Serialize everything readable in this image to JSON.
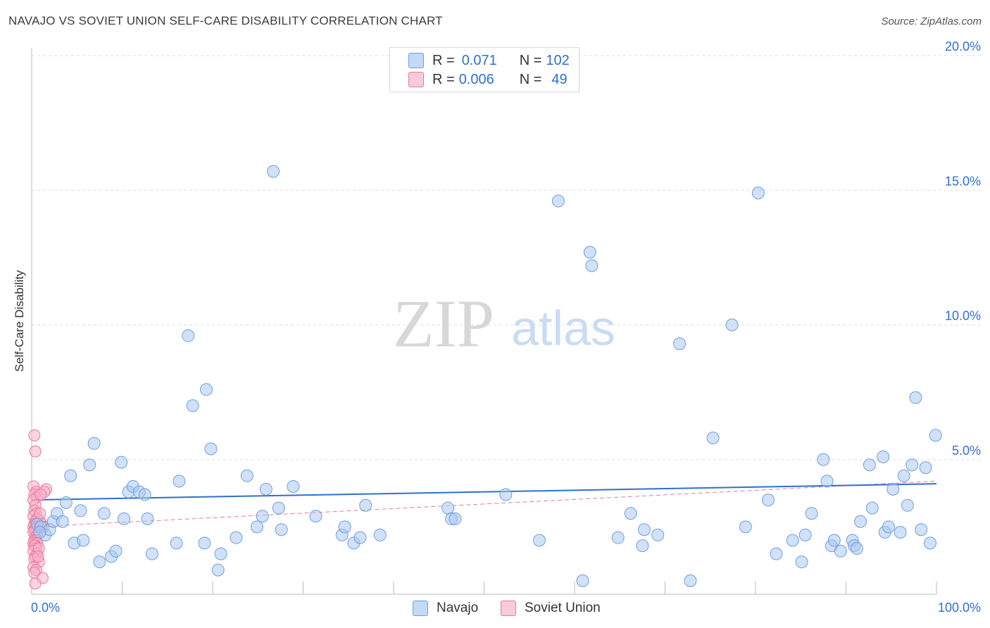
{
  "title": "NAVAJO VS SOVIET UNION SELF-CARE DISABILITY CORRELATION CHART",
  "source": "Source: ZipAtlas.com",
  "watermark": {
    "zip": "ZIP",
    "atlas": "atlas"
  },
  "legend_top": [
    {
      "r_label": "R = ",
      "r_value": "0.071",
      "n_label": "N = ",
      "n_value": "102",
      "color": "#a9c8f2"
    },
    {
      "r_label": "R = ",
      "r_value": "0.006",
      "n_label": "N = ",
      "n_value": "49",
      "color": "#f7b3c8"
    }
  ],
  "colors": {
    "navajo_fill": "#a9c8f2",
    "navajo_stroke": "#6f9fdc",
    "navajo_line": "#2f6fd0",
    "soviet_fill": "#f7b3c8",
    "soviet_stroke": "#e9779d",
    "soviet_line": "#e9779d",
    "tick_text": "#2f6fd0",
    "grid": "#dddddd"
  },
  "chart_data": {
    "type": "scatter",
    "title": "NAVAJO VS SOVIET UNION SELF-CARE DISABILITY CORRELATION CHART",
    "xlabel": "",
    "ylabel": "Self-Care Disability",
    "xlim": [
      0,
      100
    ],
    "ylim": [
      0,
      20
    ],
    "x_tick_labels": [
      "0.0%",
      "100.0%"
    ],
    "y_ticks": [
      5,
      10,
      15,
      20
    ],
    "y_tick_labels": [
      "5.0%",
      "10.0%",
      "15.0%",
      "20.0%"
    ],
    "grid": true,
    "legend_position": "top-center and bottom",
    "series": [
      {
        "name": "Navajo",
        "r": 0.071,
        "n": 102,
        "trend": {
          "x": [
            0,
            100
          ],
          "y": [
            3.5,
            4.1
          ]
        },
        "points": [
          [
            0.6,
            2.6
          ],
          [
            1.0,
            2.5
          ],
          [
            1.5,
            2.2
          ],
          [
            2.0,
            2.4
          ],
          [
            2.4,
            2.7
          ],
          [
            2.8,
            3.0
          ],
          [
            3.4,
            2.7
          ],
          [
            3.8,
            3.4
          ],
          [
            4.3,
            4.4
          ],
          [
            4.7,
            1.9
          ],
          [
            5.4,
            3.1
          ],
          [
            5.7,
            2.0
          ],
          [
            6.4,
            4.8
          ],
          [
            6.9,
            5.6
          ],
          [
            7.5,
            1.2
          ],
          [
            8.0,
            3.0
          ],
          [
            8.8,
            1.4
          ],
          [
            9.3,
            1.6
          ],
          [
            9.9,
            4.9
          ],
          [
            10.2,
            2.8
          ],
          [
            10.7,
            3.8
          ],
          [
            11.2,
            4.0
          ],
          [
            11.9,
            3.8
          ],
          [
            12.5,
            3.7
          ],
          [
            12.8,
            2.8
          ],
          [
            13.3,
            1.5
          ],
          [
            16.0,
            1.9
          ],
          [
            16.3,
            4.2
          ],
          [
            17.3,
            9.6
          ],
          [
            17.8,
            7.0
          ],
          [
            19.1,
            1.9
          ],
          [
            19.3,
            7.6
          ],
          [
            19.8,
            5.4
          ],
          [
            20.6,
            0.9
          ],
          [
            20.9,
            1.5
          ],
          [
            22.6,
            2.1
          ],
          [
            23.8,
            4.4
          ],
          [
            24.9,
            2.5
          ],
          [
            25.5,
            2.9
          ],
          [
            25.9,
            3.9
          ],
          [
            26.7,
            15.7
          ],
          [
            27.3,
            3.2
          ],
          [
            27.6,
            2.4
          ],
          [
            28.9,
            4.0
          ],
          [
            31.4,
            2.9
          ],
          [
            34.3,
            2.2
          ],
          [
            34.6,
            2.5
          ],
          [
            35.6,
            1.9
          ],
          [
            36.3,
            2.1
          ],
          [
            36.9,
            3.3
          ],
          [
            38.5,
            2.2
          ],
          [
            46.0,
            3.2
          ],
          [
            46.4,
            2.8
          ],
          [
            46.8,
            2.8
          ],
          [
            52.4,
            3.7
          ],
          [
            56.1,
            2.0
          ],
          [
            58.2,
            14.6
          ],
          [
            60.9,
            0.5
          ],
          [
            61.7,
            12.7
          ],
          [
            61.9,
            12.2
          ],
          [
            64.8,
            2.1
          ],
          [
            66.2,
            3.0
          ],
          [
            67.5,
            1.8
          ],
          [
            67.7,
            2.4
          ],
          [
            69.2,
            2.2
          ],
          [
            71.6,
            9.3
          ],
          [
            72.8,
            0.5
          ],
          [
            75.3,
            5.8
          ],
          [
            77.4,
            10.0
          ],
          [
            78.9,
            2.5
          ],
          [
            80.3,
            14.9
          ],
          [
            81.4,
            3.5
          ],
          [
            82.3,
            1.5
          ],
          [
            84.1,
            2.0
          ],
          [
            85.1,
            1.2
          ],
          [
            85.5,
            2.2
          ],
          [
            86.2,
            3.0
          ],
          [
            87.5,
            5.0
          ],
          [
            87.9,
            4.2
          ],
          [
            88.4,
            1.8
          ],
          [
            88.7,
            2.0
          ],
          [
            89.4,
            1.6
          ],
          [
            90.7,
            2.0
          ],
          [
            90.9,
            1.8
          ],
          [
            91.2,
            1.7
          ],
          [
            91.6,
            2.7
          ],
          [
            92.6,
            4.8
          ],
          [
            92.9,
            3.2
          ],
          [
            94.1,
            5.1
          ],
          [
            94.3,
            2.3
          ],
          [
            94.7,
            2.5
          ],
          [
            95.2,
            3.9
          ],
          [
            96.0,
            2.3
          ],
          [
            96.4,
            4.4
          ],
          [
            96.8,
            3.3
          ],
          [
            97.3,
            4.8
          ],
          [
            97.7,
            7.3
          ],
          [
            98.3,
            2.4
          ],
          [
            98.8,
            4.7
          ],
          [
            99.3,
            1.9
          ],
          [
            99.9,
            5.9
          ],
          [
            0.9,
            2.3
          ]
        ]
      },
      {
        "name": "Soviet Union",
        "r": 0.006,
        "n": 49,
        "trend": {
          "x": [
            0,
            100
          ],
          "y": [
            2.5,
            4.2
          ]
        },
        "points": [
          [
            0.3,
            5.9
          ],
          [
            0.4,
            5.3
          ],
          [
            0.2,
            4.0
          ],
          [
            0.5,
            3.8
          ],
          [
            0.3,
            3.7
          ],
          [
            0.6,
            3.6
          ],
          [
            0.2,
            3.5
          ],
          [
            0.4,
            3.3
          ],
          [
            0.3,
            3.1
          ],
          [
            0.5,
            3.0
          ],
          [
            0.2,
            2.9
          ],
          [
            0.6,
            2.8
          ],
          [
            0.4,
            2.7
          ],
          [
            0.3,
            2.6
          ],
          [
            0.5,
            2.6
          ],
          [
            0.2,
            2.5
          ],
          [
            0.6,
            2.5
          ],
          [
            0.4,
            2.4
          ],
          [
            0.3,
            2.4
          ],
          [
            0.5,
            2.3
          ],
          [
            0.2,
            2.3
          ],
          [
            0.6,
            2.2
          ],
          [
            0.4,
            2.1
          ],
          [
            0.3,
            2.0
          ],
          [
            0.5,
            2.0
          ],
          [
            0.2,
            1.9
          ],
          [
            0.6,
            1.9
          ],
          [
            0.4,
            1.8
          ],
          [
            0.3,
            1.8
          ],
          [
            0.5,
            1.7
          ],
          [
            0.2,
            1.6
          ],
          [
            0.6,
            1.5
          ],
          [
            0.4,
            1.4
          ],
          [
            0.3,
            1.3
          ],
          [
            0.8,
            1.2
          ],
          [
            0.2,
            1.0
          ],
          [
            0.5,
            0.9
          ],
          [
            0.3,
            0.8
          ],
          [
            1.2,
            0.6
          ],
          [
            0.4,
            0.4
          ],
          [
            1.6,
            3.9
          ],
          [
            1.4,
            3.8
          ],
          [
            1.0,
            3.7
          ],
          [
            0.9,
            2.7
          ],
          [
            1.1,
            2.6
          ],
          [
            0.8,
            1.7
          ],
          [
            0.7,
            1.4
          ],
          [
            0.9,
            3.0
          ],
          [
            1.3,
            2.5
          ]
        ]
      }
    ]
  }
}
